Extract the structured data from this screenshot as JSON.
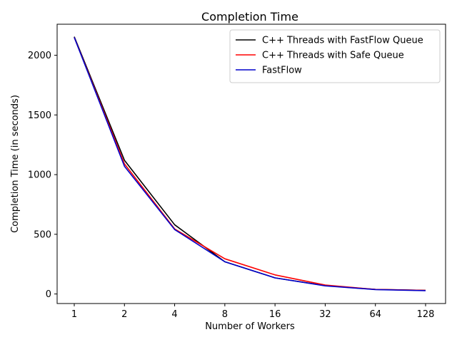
{
  "chart_data": {
    "type": "line",
    "title": "Completion Time",
    "xlabel": "Number of Workers",
    "ylabel": "Completion Time (in seconds)",
    "x": [
      1,
      2,
      4,
      8,
      16,
      32,
      64,
      128
    ],
    "x_tick_labels": [
      "1",
      "2",
      "4",
      "8",
      "16",
      "32",
      "64",
      "128"
    ],
    "x_scale": "log2",
    "ylim": [
      -80,
      2260
    ],
    "y_ticks": [
      0,
      500,
      1000,
      1500,
      2000
    ],
    "y_tick_labels": [
      "0",
      "500",
      "1000",
      "1500",
      "2000"
    ],
    "grid": false,
    "legend_position": "top-right",
    "series": [
      {
        "name": "C++ Threads with FastFlow Queue",
        "color": "#000000",
        "values": [
          2155,
          1120,
          580,
          270,
          135,
          70,
          38,
          30
        ]
      },
      {
        "name": "C++ Threads with Safe Queue",
        "color": "#ff0000",
        "values": [
          2150,
          1090,
          545,
          295,
          160,
          75,
          38,
          30
        ]
      },
      {
        "name": "FastFlow",
        "color": "#0000cc",
        "values": [
          2150,
          1070,
          540,
          270,
          135,
          68,
          37,
          28
        ]
      }
    ]
  }
}
